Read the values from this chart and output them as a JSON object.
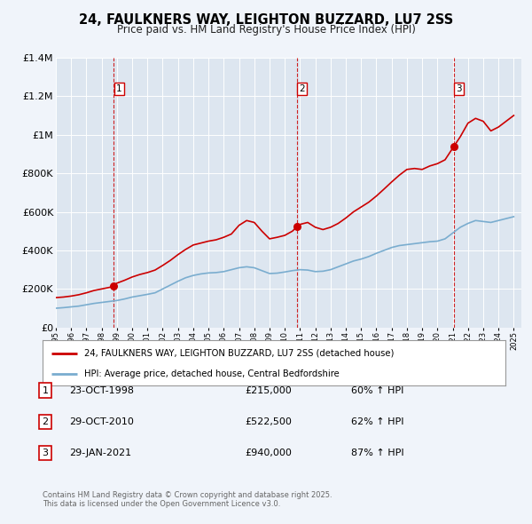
{
  "title": "24, FAULKNERS WAY, LEIGHTON BUZZARD, LU7 2SS",
  "subtitle": "Price paid vs. HM Land Registry's House Price Index (HPI)",
  "legend_red": "24, FAULKNERS WAY, LEIGHTON BUZZARD, LU7 2SS (detached house)",
  "legend_blue": "HPI: Average price, detached house, Central Bedfordshire",
  "transactions": [
    {
      "num": 1,
      "date": "23-OCT-1998",
      "price": 215000,
      "pct": "60%",
      "year": 1998.8
    },
    {
      "num": 2,
      "date": "29-OCT-2010",
      "price": 522500,
      "pct": "62%",
      "year": 2010.8
    },
    {
      "num": 3,
      "date": "29-JAN-2021",
      "price": 940000,
      "pct": "87%",
      "year": 2021.08
    }
  ],
  "footer": [
    "Contains HM Land Registry data © Crown copyright and database right 2025.",
    "This data is licensed under the Open Government Licence v3.0."
  ],
  "bg_color": "#f0f4fa",
  "plot_bg_color": "#dde6f0",
  "red_color": "#cc0000",
  "blue_color": "#7aadcf",
  "dashed_color": "#cc0000",
  "ylim": [
    0,
    1400000
  ],
  "xlim_start": 1995.0,
  "xlim_end": 2025.5,
  "hpi_years": [
    1995,
    1995.5,
    1996,
    1996.5,
    1997,
    1997.5,
    1998,
    1998.5,
    1999,
    1999.5,
    2000,
    2000.5,
    2001,
    2001.5,
    2002,
    2002.5,
    2003,
    2003.5,
    2004,
    2004.5,
    2005,
    2005.5,
    2006,
    2006.5,
    2007,
    2007.5,
    2008,
    2008.5,
    2009,
    2009.5,
    2010,
    2010.5,
    2011,
    2011.5,
    2012,
    2012.5,
    2013,
    2013.5,
    2014,
    2014.5,
    2015,
    2015.5,
    2016,
    2016.5,
    2017,
    2017.5,
    2018,
    2018.5,
    2019,
    2019.5,
    2020,
    2020.5,
    2021,
    2021.5,
    2022,
    2022.5,
    2023,
    2023.5,
    2024,
    2024.5,
    2025
  ],
  "hpi_values": [
    100000,
    103000,
    107000,
    111000,
    118000,
    125000,
    130000,
    135000,
    140000,
    148000,
    158000,
    165000,
    172000,
    180000,
    200000,
    220000,
    240000,
    258000,
    270000,
    278000,
    283000,
    285000,
    290000,
    300000,
    310000,
    315000,
    310000,
    295000,
    280000,
    282000,
    288000,
    295000,
    300000,
    298000,
    290000,
    292000,
    300000,
    315000,
    330000,
    345000,
    355000,
    368000,
    385000,
    400000,
    415000,
    425000,
    430000,
    435000,
    440000,
    445000,
    448000,
    460000,
    490000,
    520000,
    540000,
    555000,
    550000,
    545000,
    555000,
    565000,
    575000
  ],
  "red_years": [
    1995,
    1995.5,
    1996,
    1996.5,
    1997,
    1997.5,
    1998,
    1998.5,
    1998.8,
    1999,
    1999.5,
    2000,
    2000.5,
    2001,
    2001.5,
    2002,
    2002.5,
    2003,
    2003.5,
    2004,
    2004.5,
    2005,
    2005.5,
    2006,
    2006.5,
    2007,
    2007.5,
    2008,
    2008.5,
    2009,
    2009.5,
    2010,
    2010.5,
    2010.8,
    2011,
    2011.5,
    2012,
    2012.5,
    2013,
    2013.5,
    2014,
    2014.5,
    2015,
    2015.5,
    2016,
    2016.5,
    2017,
    2017.5,
    2018,
    2018.5,
    2019,
    2019.5,
    2020,
    2020.5,
    2021.08,
    2021.5,
    2022,
    2022.5,
    2023,
    2023.5,
    2024,
    2024.5,
    2025
  ],
  "red_values": [
    155000,
    158000,
    163000,
    170000,
    180000,
    192000,
    200000,
    208000,
    215000,
    230000,
    245000,
    262000,
    275000,
    285000,
    298000,
    322000,
    348000,
    378000,
    405000,
    428000,
    438000,
    448000,
    455000,
    468000,
    485000,
    530000,
    555000,
    545000,
    500000,
    460000,
    468000,
    478000,
    500000,
    522500,
    535000,
    545000,
    520000,
    508000,
    520000,
    540000,
    568000,
    600000,
    625000,
    650000,
    682000,
    718000,
    755000,
    790000,
    820000,
    825000,
    820000,
    838000,
    850000,
    870000,
    940000,
    990000,
    1060000,
    1085000,
    1070000,
    1020000,
    1040000,
    1070000,
    1100000
  ]
}
